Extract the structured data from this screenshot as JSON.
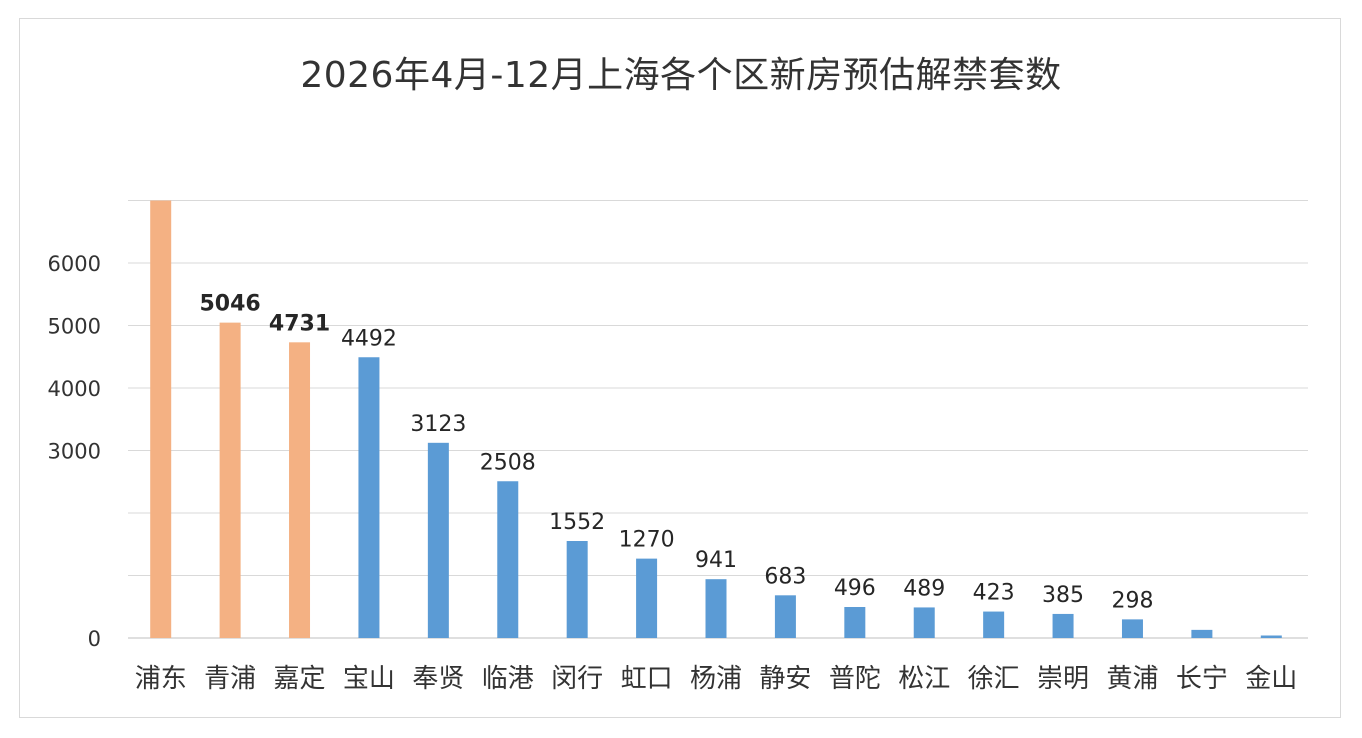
{
  "chart_data": {
    "type": "bar",
    "title": "2026年4月-12月上海各个区新房预估解禁套数",
    "xlabel": "",
    "ylabel": "",
    "ylim": [
      0,
      8000
    ],
    "yticks": [
      0,
      1000,
      2000,
      3000,
      4000,
      5000,
      6000,
      7000
    ],
    "ytick_labels": [
      "0",
      "",
      "",
      "3000",
      "4000",
      "5000",
      "6000",
      ""
    ],
    "grid": true,
    "legend": "none",
    "categories": [
      "浦东",
      "青浦",
      "嘉定",
      "宝山",
      "奉贤",
      "临港",
      "闵行",
      "虹口",
      "杨浦",
      "静安",
      "普陀",
      "松江",
      "徐汇",
      "崇明",
      "黄浦",
      "长宁",
      "金山"
    ],
    "values": [
      7000,
      5046,
      4731,
      4492,
      3123,
      2508,
      1552,
      1270,
      941,
      683,
      496,
      489,
      423,
      385,
      298,
      130,
      40
    ],
    "data_labels": [
      "",
      "5046",
      "4731",
      "4492",
      "3123",
      "2508",
      "1552",
      "1270",
      "941",
      "683",
      "496",
      "489",
      "423",
      "385",
      "298",
      "",
      ""
    ],
    "bold_labels": [
      false,
      true,
      true,
      false,
      false,
      false,
      false,
      false,
      false,
      false,
      false,
      false,
      false,
      false,
      false,
      false,
      false
    ],
    "highlight_count": 3,
    "colors": {
      "highlight": "#f4b183",
      "normal": "#5b9bd5",
      "grid": "#d9d9d9",
      "axis": "#bfbfbf"
    }
  }
}
